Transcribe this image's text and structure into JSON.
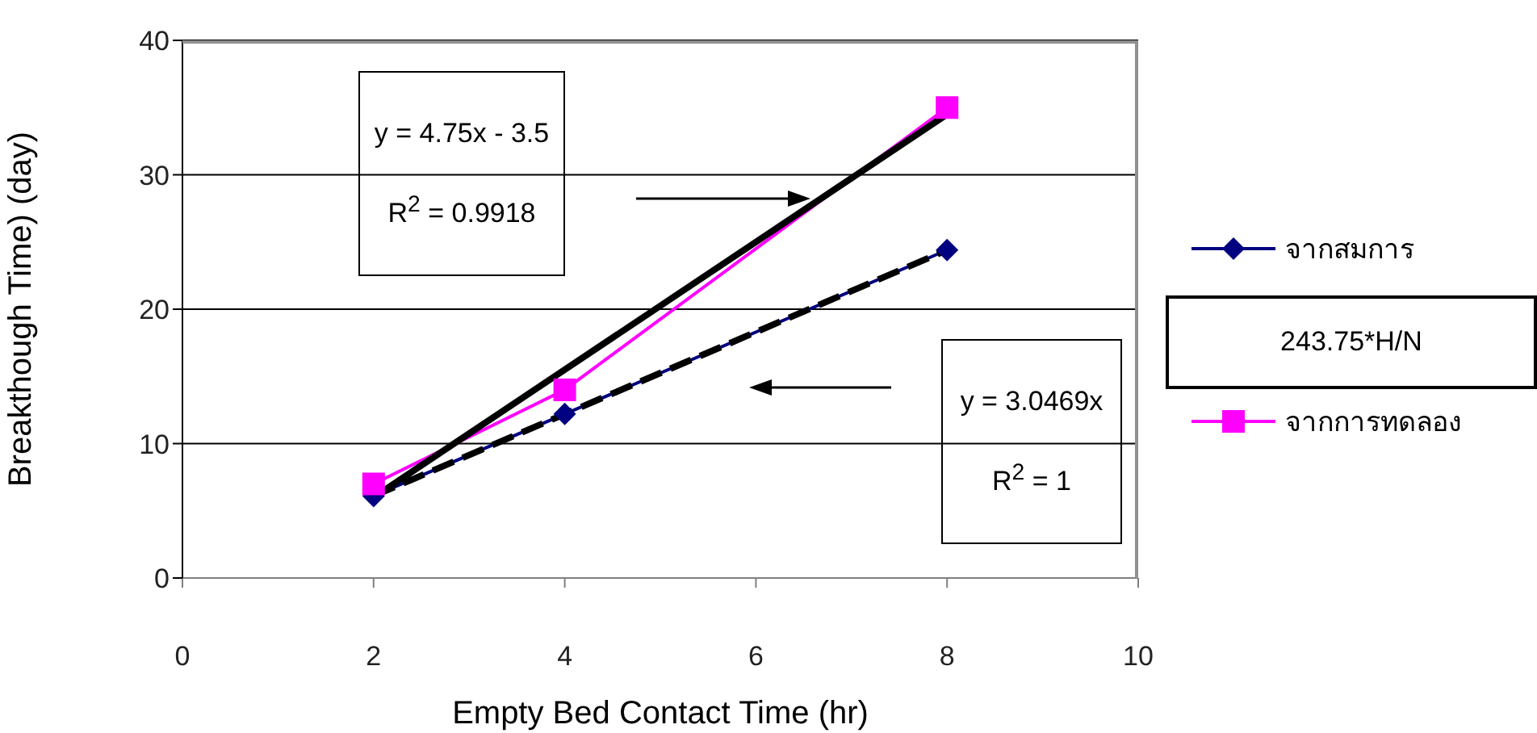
{
  "chart_data": {
    "type": "line",
    "xlabel": "Empty Bed Contact Time  (hr)",
    "ylabel": "Breakthough Time)  (day)",
    "xlim": [
      0,
      10
    ],
    "xticks": [
      0,
      2,
      4,
      6,
      8,
      10
    ],
    "ylim": [
      0,
      40
    ],
    "yticks": [
      0,
      10,
      20,
      30,
      40
    ],
    "grid": "y",
    "legend": "right",
    "series": [
      {
        "name": "จากสมการ",
        "color": "#000080",
        "x": [
          2,
          4,
          8
        ],
        "values": [
          6.1,
          12.2,
          24.4
        ],
        "marker": "diamond",
        "line_style": "solid"
      },
      {
        "name": "จากการทดลอง",
        "color": "#ff00ff",
        "x": [
          2,
          4,
          8
        ],
        "values": [
          7,
          14,
          35
        ],
        "marker": "square",
        "line_style": "solid"
      },
      {
        "type": "line",
        "color": "#000000",
        "x": [
          2,
          8
        ],
        "values": [
          6,
          34.5
        ],
        "marker": "none",
        "line_style": "solid"
      },
      {
        "type": "line",
        "color": "#000000",
        "x": [
          2,
          8
        ],
        "values": [
          6.1,
          24.4
        ],
        "marker": "none",
        "line_style": "dashed"
      }
    ],
    "annotations": [
      "y = 4.75x - 3.5",
      "R$^{2}$ = 0.9918",
      "y = 3.0469x",
      "R$^{2}$ = 1",
      "243.75*H/N"
    ]
  }
}
